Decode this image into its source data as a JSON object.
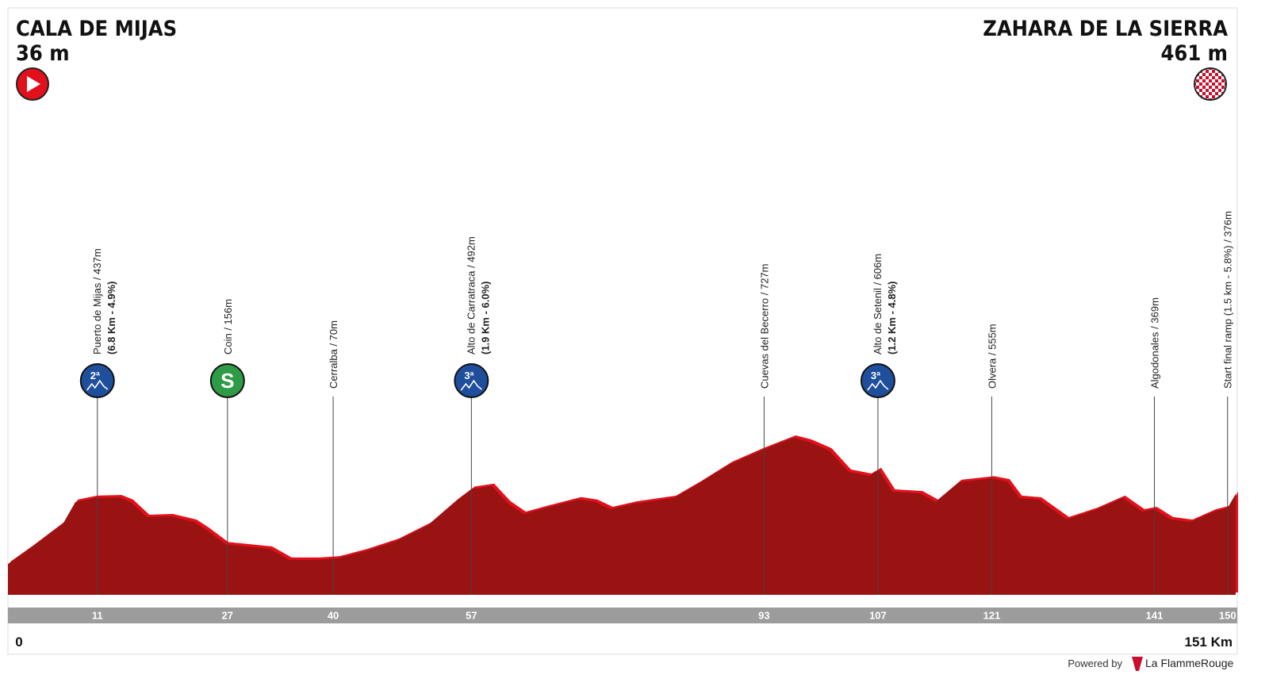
{
  "header": {
    "start_name": "CALA DE MIJAS",
    "start_elevation": "36 m",
    "finish_name": "ZAHARA DE LA SIERRA",
    "finish_elevation": "461 m"
  },
  "chart_data": {
    "type": "area",
    "color": "#9a1313",
    "edge_color": "#e3101b",
    "x": [
      0,
      2.9,
      6.8,
      8.3,
      10.7,
      13.7,
      15.1,
      17.1,
      20,
      22.9,
      24.4,
      26.8,
      32.2,
      34.6,
      38,
      40.5,
      43.9,
      47.8,
      51.7,
      55.1,
      57.1,
      59.5,
      61.5,
      63.4,
      66.3,
      70.2,
      72.2,
      74.1,
      77.1,
      81.9,
      84.9,
      88.8,
      92.7,
      96.6,
      98.5,
      101,
      103.4,
      105.9,
      107.1,
      108.8,
      112.2,
      114.1,
      117,
      121,
      122.9,
      124.4,
      126.8,
      130.2,
      133.7,
      137.1,
      139.5,
      141,
      143,
      145.4,
      148.3,
      150,
      151
    ],
    "values": [
      36,
      138,
      283,
      413,
      437,
      441,
      413,
      321,
      326,
      292,
      244,
      156,
      129,
      62,
      62,
      70,
      114,
      177,
      273,
      418,
      492,
      510,
      404,
      340,
      379,
      428,
      413,
      369,
      403,
      437,
      523,
      643,
      727,
      802,
      778,
      725,
      595,
      571,
      606,
      475,
      465,
      413,
      533,
      555,
      537,
      437,
      427,
      307,
      364,
      437,
      355,
      369,
      307,
      292,
      355,
      376,
      461
    ],
    "xlim": [
      0,
      151
    ],
    "ylim": [
      -150,
      1100
    ],
    "xticks": [
      {
        "value": 0,
        "label": "0"
      },
      {
        "value": 151,
        "label": "151 Km"
      }
    ]
  },
  "waypoints": [
    {
      "km": 11,
      "name": "Puerto de Mijas / 437m",
      "detail": "(6.8 Km - 4.9%)",
      "icon": "2ª"
    },
    {
      "km": 27,
      "name": "Coin / 156m",
      "icon": "S"
    },
    {
      "km": 40,
      "name": "Cerralba / 70m"
    },
    {
      "km": 57,
      "name": "Alto de Carratraca / 492m",
      "detail": "(1.9 Km - 6.0%)",
      "icon": "3ª"
    },
    {
      "km": 93,
      "name": "Cuevas del Becerro / 727m"
    },
    {
      "km": 107,
      "name": "Alto de Setenil / 606m",
      "detail": "(1.2 Km - 4.8%)",
      "icon": "3ª"
    },
    {
      "km": 121,
      "name": "Olvera / 555m"
    },
    {
      "km": 141,
      "name": "Algodonales / 369m"
    },
    {
      "km": 150,
      "name": "Start final ramp (1.5 km - 5.8%) / 376m"
    }
  ],
  "footer": {
    "powered": "Powered by",
    "brand": "La FlammeRouge"
  }
}
